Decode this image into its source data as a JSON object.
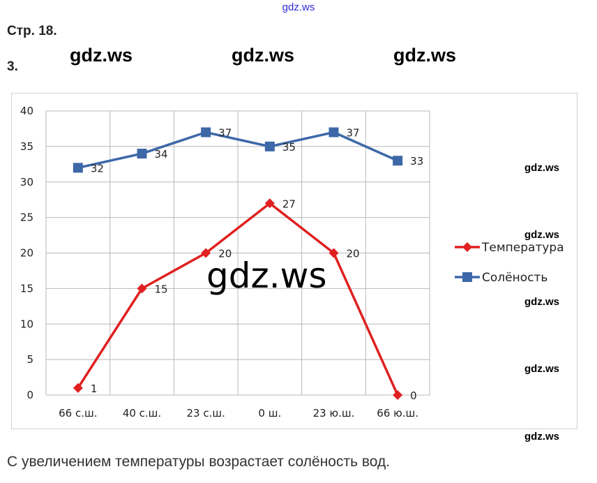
{
  "watermark_top": "gdz.ws",
  "page_label": "Стр. 18.",
  "task_label": "3.",
  "watermarks": {
    "big": [
      "gdz.ws",
      "gdz.ws",
      "gdz.ws"
    ],
    "center": "gdz.ws",
    "side": [
      "gdz.ws",
      "gdz.ws",
      "gdz.ws",
      "gdz.ws",
      "gdz.ws"
    ]
  },
  "conclusion": "С увеличением температуры возрастает солёность вод.",
  "chart_data": {
    "type": "line",
    "categories": [
      "66 с.ш.",
      "40 с.ш.",
      "23 с.ш.",
      "0 ш.",
      "23 ю.ш.",
      "66 ю.ш."
    ],
    "ylim": [
      0,
      40
    ],
    "yticks": [
      0,
      5,
      10,
      15,
      20,
      25,
      30,
      35,
      40
    ],
    "grid": true,
    "legend_position": "right",
    "series": [
      {
        "name": "Температура",
        "values": [
          1,
          15,
          20,
          27,
          20,
          0
        ],
        "color": "#e02020",
        "marker": "diamond"
      },
      {
        "name": "Солёность",
        "values": [
          32,
          34,
          37,
          35,
          37,
          33
        ],
        "color": "#3d68a8",
        "marker": "square"
      }
    ]
  }
}
